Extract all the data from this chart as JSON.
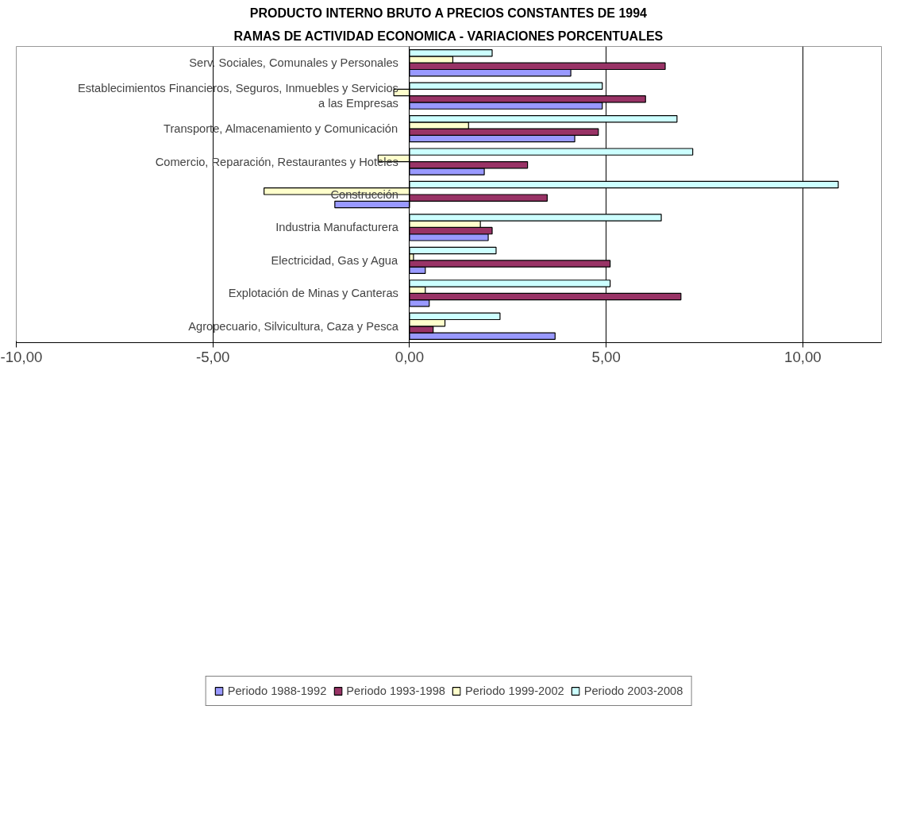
{
  "chart_data": {
    "type": "bar",
    "orientation": "horizontal",
    "title": "PRODUCTO INTERNO BRUTO A PRECIOS CONSTANTES DE 1994",
    "subtitle": "RAMAS DE ACTIVIDAD ECONOMICA - VARIACIONES PORCENTUALES",
    "categories": [
      "Serv. Sociales, Comunales y Personales",
      "Establecimientos Financieros, Seguros, Inmuebles y Servicios a las Empresas",
      "Transporte, Almacenamiento y Comunicación",
      "Comercio, Reparación, Restaurantes y Hoteles",
      "Construcción",
      "Industria Manufacturera",
      "Electricidad, Gas y Agua",
      "Explotación de Minas y Canteras",
      "Agropecuario, Silvicultura, Caza y Pesca"
    ],
    "series": [
      {
        "name": "Periodo 1988-1992",
        "color": "#9999ff",
        "values": [
          4.1,
          4.9,
          4.2,
          1.9,
          -1.9,
          2.0,
          0.4,
          0.5,
          3.7
        ]
      },
      {
        "name": "Periodo 1993-1998",
        "color": "#993366",
        "values": [
          6.5,
          6.0,
          4.8,
          3.0,
          3.5,
          2.1,
          5.1,
          6.9,
          0.6
        ]
      },
      {
        "name": "Periodo 1999-2002",
        "color": "#ffffcc",
        "values": [
          1.1,
          -0.4,
          1.5,
          -0.8,
          -3.7,
          1.8,
          0.1,
          0.4,
          0.9
        ]
      },
      {
        "name": "Periodo 2003-2008",
        "color": "#ccffff",
        "values": [
          2.1,
          4.9,
          6.8,
          7.2,
          10.9,
          6.4,
          2.2,
          5.1,
          2.3
        ]
      }
    ],
    "xlim": [
      -10,
      12
    ],
    "xticks": [
      {
        "value": -10,
        "label": "-10,00"
      },
      {
        "value": -5,
        "label": "-5,00"
      },
      {
        "value": 0,
        "label": "0,00"
      },
      {
        "value": 5,
        "label": "5,00"
      },
      {
        "value": 10,
        "label": "10,00"
      }
    ],
    "grid": "x",
    "legend": "bottom"
  }
}
